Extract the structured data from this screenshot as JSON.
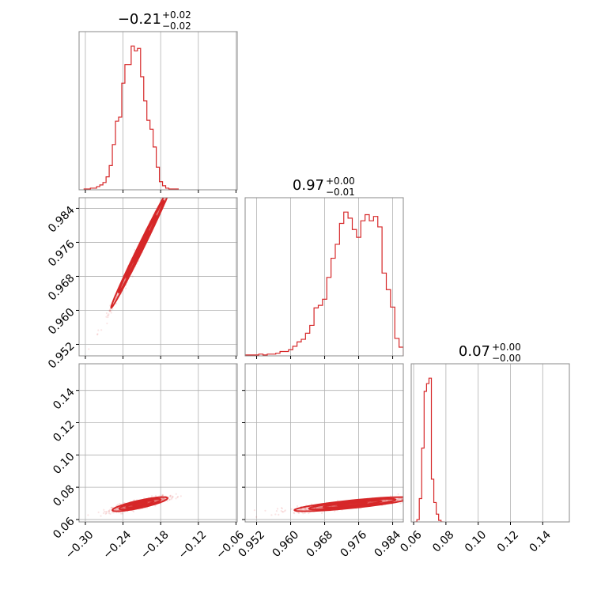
{
  "chart_data": [
    {
      "type": "histogram",
      "panel": "x-marginal",
      "title": {
        "median": "−0.21",
        "plus": "+0.02",
        "minus": "−0.02"
      },
      "xlim": [
        -0.31,
        -0.058
      ],
      "xticks": [
        -0.3,
        -0.24,
        -0.18,
        -0.12,
        -0.06
      ],
      "grid": true,
      "color": "#d62728",
      "bin_edges": [
        -0.302,
        -0.297,
        -0.292,
        -0.287,
        -0.282,
        -0.277,
        -0.272,
        -0.267,
        -0.262,
        -0.257,
        -0.252,
        -0.247,
        -0.242,
        -0.237,
        -0.232,
        -0.227,
        -0.222,
        -0.217,
        -0.212,
        -0.207,
        -0.202,
        -0.197,
        -0.192,
        -0.187,
        -0.182,
        -0.177,
        -0.172,
        -0.167,
        -0.162,
        -0.157,
        -0.152
      ],
      "counts": [
        1,
        1,
        2,
        2,
        4,
        6,
        9,
        16,
        30,
        56,
        85,
        90,
        132,
        155,
        155,
        178,
        172,
        175,
        140,
        110,
        86,
        75,
        53,
        28,
        10,
        5,
        2,
        1,
        1,
        1
      ]
    },
    {
      "type": "histogram",
      "panel": "y-marginal",
      "title": {
        "median": "0.97",
        "plus": "+0.00",
        "minus": "−0.01"
      },
      "xlim": [
        0.9493,
        0.9865
      ],
      "xticks": [
        0.952,
        0.96,
        0.968,
        0.976,
        0.984
      ],
      "grid": true,
      "color": "#d62728",
      "bin_edges": [
        0.9495,
        0.9505,
        0.9515,
        0.9525,
        0.9535,
        0.9545,
        0.9555,
        0.9565,
        0.9575,
        0.9585,
        0.9595,
        0.9605,
        0.9615,
        0.9625,
        0.9635,
        0.9645,
        0.9655,
        0.9665,
        0.9675,
        0.9685,
        0.9695,
        0.9705,
        0.9715,
        0.9725,
        0.9735,
        0.9745,
        0.9755,
        0.9765,
        0.9775,
        0.9785,
        0.9795,
        0.9805,
        0.9815,
        0.9825,
        0.9835,
        0.9845,
        0.9855,
        0.9865
      ],
      "counts": [
        1,
        1,
        1,
        2,
        1,
        2,
        2,
        3,
        5,
        5,
        7,
        11,
        16,
        19,
        26,
        35,
        55,
        58,
        65,
        90,
        112,
        128,
        152,
        165,
        158,
        145,
        136,
        155,
        162,
        155,
        160,
        148,
        95,
        76,
        56,
        20,
        10
      ]
    },
    {
      "type": "histogram",
      "panel": "z-marginal",
      "title": {
        "median": "0.07",
        "plus": "+0.00",
        "minus": "−0.00"
      },
      "xlim": [
        0.0585,
        0.1565
      ],
      "xticks": [
        0.06,
        0.08,
        0.1,
        0.12,
        0.14
      ],
      "grid": true,
      "color": "#d62728",
      "bin_edges": [
        0.0605,
        0.062,
        0.0635,
        0.065,
        0.0665,
        0.068,
        0.0695,
        0.071,
        0.0725,
        0.074,
        0.0755,
        0.077,
        0.0785
      ],
      "counts": [
        0,
        3,
        30,
        95,
        168,
        178,
        185,
        55,
        25,
        10,
        2,
        0
      ]
    },
    {
      "type": "contour",
      "panel": "x-vs-y",
      "xlim": [
        -0.31,
        -0.058
      ],
      "ylim": [
        0.9493,
        0.9865
      ],
      "xticks": [
        -0.3,
        -0.24,
        -0.18,
        -0.12,
        -0.06
      ],
      "yticks": [
        0.952,
        0.96,
        0.968,
        0.976,
        0.984
      ],
      "center": [
        -0.211,
        0.975
      ],
      "sigma": [
        0.024,
        0.0072
      ],
      "correlation": 0.995,
      "levels": [
        0.5,
        1.0,
        1.5,
        2.0
      ],
      "color": "#d62728"
    },
    {
      "type": "contour",
      "panel": "x-vs-z",
      "xlim": [
        -0.31,
        -0.058
      ],
      "ylim": [
        0.0585,
        0.1565
      ],
      "xticks": [
        -0.3,
        -0.24,
        -0.18,
        -0.12,
        -0.06
      ],
      "yticks": [
        0.06,
        0.08,
        0.1,
        0.12,
        0.14
      ],
      "center": [
        -0.213,
        0.0695
      ],
      "sigma": [
        0.022,
        0.0022
      ],
      "correlation": 0.84,
      "levels": [
        0.5,
        1.0,
        1.5,
        2.0
      ],
      "color": "#d62728"
    },
    {
      "type": "contour",
      "panel": "y-vs-z",
      "xlim": [
        0.9493,
        0.9865
      ],
      "ylim": [
        0.0585,
        0.1565
      ],
      "xticks": [
        0.952,
        0.96,
        0.968,
        0.976,
        0.984
      ],
      "yticks": [
        0.06,
        0.08,
        0.1,
        0.12,
        0.14
      ],
      "center": [
        0.9745,
        0.0695
      ],
      "sigma": [
        0.0068,
        0.0022
      ],
      "correlation": 0.84,
      "levels": [
        0.5,
        1.0,
        1.5,
        2.0
      ],
      "color": "#d62728"
    }
  ],
  "tick_labels": {
    "x_param": [
      "−0.30",
      "−0.24",
      "−0.18",
      "−0.12",
      "−0.06"
    ],
    "y_param": [
      "0.952",
      "0.960",
      "0.968",
      "0.976",
      "0.984"
    ],
    "z_param": [
      "0.06",
      "0.08",
      "0.10",
      "0.12",
      "0.14"
    ]
  }
}
